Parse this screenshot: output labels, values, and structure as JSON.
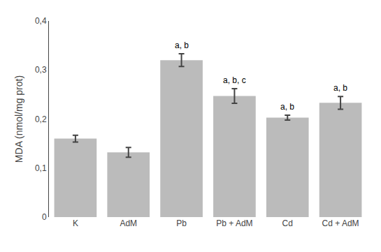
{
  "chart_data": {
    "type": "bar",
    "categories": [
      "K",
      "AdM",
      "Pb",
      "Pb + AdM",
      "Cd",
      "Cd + AdM"
    ],
    "values": [
      0.16,
      0.132,
      0.32,
      0.247,
      0.203,
      0.233
    ],
    "errors": [
      0.007,
      0.01,
      0.013,
      0.015,
      0.005,
      0.013
    ],
    "annotations": [
      null,
      null,
      "a, b",
      "a, b, c",
      "a, b",
      "a, b"
    ],
    "color": "#BBBBBB",
    "ylabel": "MDA (nmol/mg prot)",
    "ylim": [
      0,
      0.4
    ],
    "yticks": [
      0,
      {
        "value": 0.1,
        "label": "0,1"
      },
      {
        "value": 0.2,
        "label": "0,2"
      },
      {
        "value": 0.3,
        "label": "0,3"
      },
      {
        "value": 0.4,
        "label": "0,4"
      }
    ],
    "grid": false
  }
}
